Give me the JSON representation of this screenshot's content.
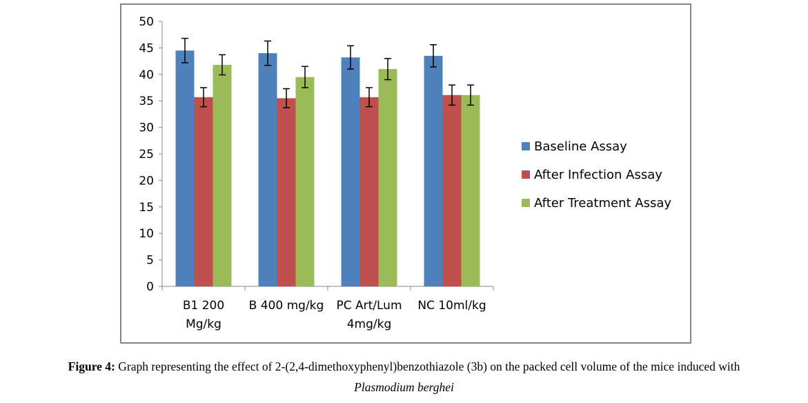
{
  "chart_data": {
    "type": "bar",
    "categories": [
      [
        "B1 200",
        "Mg/kg"
      ],
      [
        "B 400 mg/kg"
      ],
      [
        "PC Art/Lum",
        "4mg/kg"
      ],
      [
        "NC 10ml/kg"
      ]
    ],
    "series": [
      {
        "name": "Baseline Assay",
        "color": "#4f81bd",
        "values": [
          44.5,
          44.0,
          43.2,
          43.5
        ],
        "errors": [
          2.3,
          2.3,
          2.2,
          2.1
        ]
      },
      {
        "name": "After Infection Assay",
        "color": "#c0504d",
        "values": [
          35.7,
          35.5,
          35.7,
          36.1
        ],
        "errors": [
          1.8,
          1.8,
          1.8,
          1.9
        ]
      },
      {
        "name": "After Treatment Assay",
        "color": "#9bbb59",
        "values": [
          41.8,
          39.5,
          41.0,
          36.1
        ],
        "errors": [
          1.9,
          2.0,
          2.0,
          1.9
        ]
      }
    ],
    "ylim": [
      0,
      50
    ],
    "yticks": [
      0,
      5,
      10,
      15,
      20,
      25,
      30,
      35,
      40,
      45,
      50
    ],
    "legend_position": "right",
    "grid": false
  },
  "caption": {
    "label": "Figure 4:",
    "text": " Graph representing the effect of 2-(2,4-dimethoxyphenyl)benzothiazole (3b) on the packed cell volume of the mice induced with",
    "species": "Plasmodium berghei"
  }
}
